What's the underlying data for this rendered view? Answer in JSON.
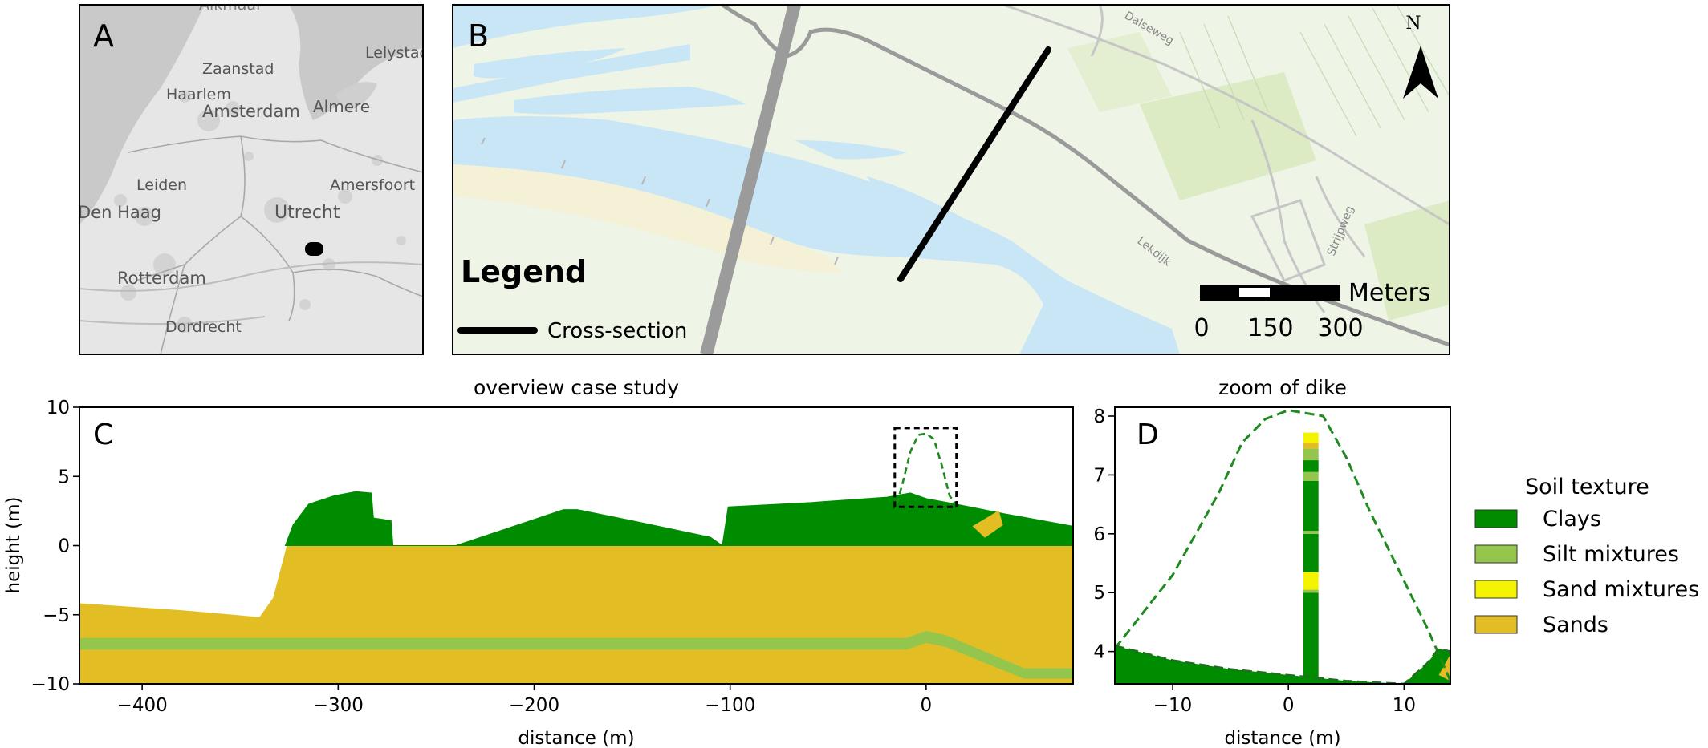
{
  "panel_a": {
    "letter": "A",
    "cities": [
      "Zaanstad",
      "Lelystad",
      "Haarlem",
      "Amsterdam",
      "Almere",
      "Leiden",
      "Amersfoort",
      "Den Haag",
      "Utrecht",
      "Rotterdam",
      "Dordrecht",
      "Alkmaar"
    ]
  },
  "panel_b": {
    "letter": "B",
    "legend_title": "Legend",
    "legend_item": "Cross-section",
    "north": "N",
    "scale_unit": "Meters",
    "scale_ticks": [
      "0",
      "150",
      "300"
    ],
    "roads": [
      "Lekdijk",
      "Strijpweg",
      "Dalseweg"
    ]
  },
  "chart_data": [
    {
      "type": "area",
      "panel": "C",
      "title": "overview case study",
      "xlabel": "distance (m)",
      "ylabel": "height (m)",
      "xlim": [
        -432,
        75
      ],
      "ylim": [
        -10,
        10
      ],
      "xticks": [
        -400,
        -300,
        -200,
        -100,
        0
      ],
      "xtick_labels": [
        "−400",
        "−300",
        "−200",
        "−100",
        "0"
      ],
      "yticks": [
        -10,
        -5,
        0,
        5,
        10
      ],
      "ytick_labels": [
        "−10",
        "−5",
        "0",
        "5",
        "10"
      ],
      "layers": [
        {
          "name": "Sands",
          "color": "#e3bd24",
          "top": [
            [
              -432,
              -4.2
            ],
            [
              -380,
              -4.7
            ],
            [
              -340,
              -5.2
            ],
            [
              -333,
              -3.8
            ],
            [
              -326,
              0
            ],
            [
              -75,
              0
            ],
            [
              75,
              0
            ]
          ],
          "bottom": [
            [
              -432,
              -10
            ],
            [
              75,
              -10
            ]
          ]
        },
        {
          "name": "Silt mixtures",
          "color": "#94c64d",
          "top": [
            [
              -432,
              -6.7
            ],
            [
              -10,
              -6.7
            ],
            [
              0,
              -6.2
            ],
            [
              10,
              -6.5
            ],
            [
              50,
              -8.9
            ],
            [
              75,
              -8.9
            ]
          ],
          "bottom": [
            [
              -432,
              -7.5
            ],
            [
              -10,
              -7.5
            ],
            [
              0,
              -7.0
            ],
            [
              10,
              -7.3
            ],
            [
              50,
              -9.6
            ],
            [
              75,
              -9.6
            ]
          ]
        },
        {
          "name": "Clays",
          "color": "#008c00",
          "top": [
            [
              -327,
              0
            ],
            [
              -323,
              1.5
            ],
            [
              -315,
              3.0
            ],
            [
              -302,
              3.6
            ],
            [
              -291,
              3.9
            ],
            [
              -283,
              3.8
            ],
            [
              -282,
              2.0
            ],
            [
              -273,
              1.8
            ],
            [
              -272,
              0
            ],
            [
              -240,
              0
            ],
            [
              -185,
              2.6
            ],
            [
              -178,
              2.6
            ],
            [
              -150,
              1.8
            ],
            [
              -110,
              0.6
            ],
            [
              -104,
              0
            ],
            [
              -101,
              2.8
            ],
            [
              -60,
              3.1
            ],
            [
              -20,
              3.5
            ],
            [
              -8,
              3.8
            ],
            [
              0,
              3.4
            ],
            [
              15,
              3.0
            ],
            [
              40,
              2.3
            ],
            [
              75,
              1.4
            ]
          ],
          "bottom": [
            [
              -327,
              0
            ],
            [
              -240,
              0
            ],
            [
              -104,
              0
            ],
            [
              75,
              0
            ]
          ]
        },
        {
          "name": "Sands",
          "color": "#e3bd24",
          "top": [
            [
              37,
              2.5
            ],
            [
              39,
              1.5
            ]
          ],
          "bottom": [
            [
              24,
              1.4
            ],
            [
              30,
              0.6
            ],
            [
              39,
              1.5
            ]
          ]
        }
      ],
      "dike_outline": [
        [
          -15,
          3.0
        ],
        [
          -12,
          4.5
        ],
        [
          -8,
          6.8
        ],
        [
          -4,
          8.0
        ],
        [
          0,
          8.1
        ],
        [
          4,
          7.7
        ],
        [
          8,
          5.8
        ],
        [
          12,
          3.6
        ],
        [
          15,
          3.0
        ]
      ],
      "zoom_box": {
        "x": [
          -16,
          15.5
        ],
        "y": [
          2.8,
          8.5
        ]
      },
      "ground_line": [
        [
          -432,
          -4.2
        ],
        [
          -380,
          -4.7
        ],
        [
          -340,
          -5.2
        ],
        [
          -333,
          -3.8
        ],
        [
          -326,
          0
        ],
        [
          -240,
          -0.8
        ],
        [
          -220,
          -0.7
        ]
      ]
    },
    {
      "type": "area",
      "panel": "D",
      "title": "zoom of dike",
      "xlabel": "distance (m)",
      "ylabel": "",
      "xlim": [
        -15,
        14
      ],
      "ylim": [
        3.45,
        8.15
      ],
      "xticks": [
        -10,
        0,
        10
      ],
      "xtick_labels": [
        "−10",
        "0",
        "10"
      ],
      "yticks": [
        4,
        5,
        6,
        7,
        8
      ],
      "ytick_labels": [
        "4",
        "5",
        "6",
        "7",
        "8"
      ],
      "dike_outline": [
        [
          -15,
          4.05
        ],
        [
          -10,
          5.3
        ],
        [
          -6,
          6.7
        ],
        [
          -4,
          7.55
        ],
        [
          -2,
          7.95
        ],
        [
          0,
          8.1
        ],
        [
          3,
          8.0
        ],
        [
          5,
          7.3
        ],
        [
          7,
          6.4
        ],
        [
          10,
          5.2
        ],
        [
          12,
          4.4
        ],
        [
          14,
          3.5
        ]
      ],
      "ground": [
        [
          -15,
          4.1
        ],
        [
          -10,
          3.85
        ],
        [
          -5,
          3.7
        ],
        [
          0,
          3.6
        ],
        [
          5,
          3.5
        ],
        [
          10,
          3.45
        ],
        [
          12,
          3.8
        ],
        [
          13,
          4.05
        ],
        [
          14,
          4.0
        ]
      ],
      "soil_column": {
        "x": [
          1.3,
          2.6
        ],
        "layers": [
          {
            "from": 3.45,
            "to": 5.0,
            "color": "#008c00"
          },
          {
            "from": 5.0,
            "to": 5.05,
            "color": "#94c64d"
          },
          {
            "from": 5.05,
            "to": 5.2,
            "color": "#f4f400"
          },
          {
            "from": 5.2,
            "to": 5.35,
            "color": "#f4f400"
          },
          {
            "from": 5.35,
            "to": 6.0,
            "color": "#008c00"
          },
          {
            "from": 6.0,
            "to": 6.05,
            "color": "#94c64d"
          },
          {
            "from": 6.05,
            "to": 6.9,
            "color": "#008c00"
          },
          {
            "from": 6.9,
            "to": 7.05,
            "color": "#94c64d"
          },
          {
            "from": 7.05,
            "to": 7.25,
            "color": "#008c00"
          },
          {
            "from": 7.25,
            "to": 7.45,
            "color": "#94c64d"
          },
          {
            "from": 7.45,
            "to": 7.55,
            "color": "#e3bd24"
          },
          {
            "from": 7.55,
            "to": 7.72,
            "color": "#f4f400"
          }
        ]
      },
      "sand_patch": [
        [
          13,
          3.6
        ],
        [
          14,
          3.5
        ],
        [
          14,
          3.95
        ]
      ]
    }
  ],
  "legend": {
    "title": "Soil texture",
    "items": [
      {
        "label": "Clays",
        "color": "#008c00"
      },
      {
        "label": "Silt mixtures",
        "color": "#94c64d"
      },
      {
        "label": "Sand mixtures",
        "color": "#f4f400"
      },
      {
        "label": "Sands",
        "color": "#e3bd24"
      }
    ]
  }
}
